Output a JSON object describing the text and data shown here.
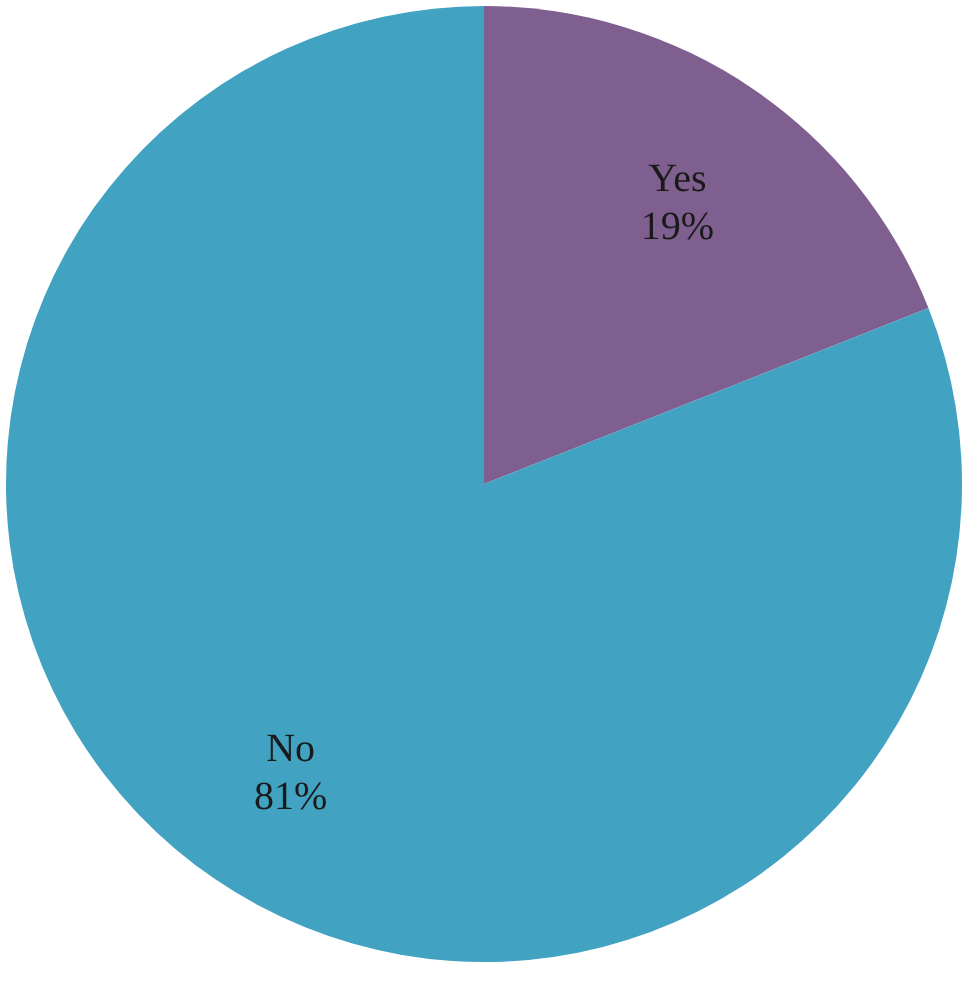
{
  "chart_data": {
    "type": "pie",
    "categories": [
      "Yes",
      "No"
    ],
    "values": [
      19,
      81
    ],
    "colors": [
      "#7f5f8f",
      "#41a2c1"
    ],
    "value_labels": [
      "19%",
      "81%"
    ]
  }
}
